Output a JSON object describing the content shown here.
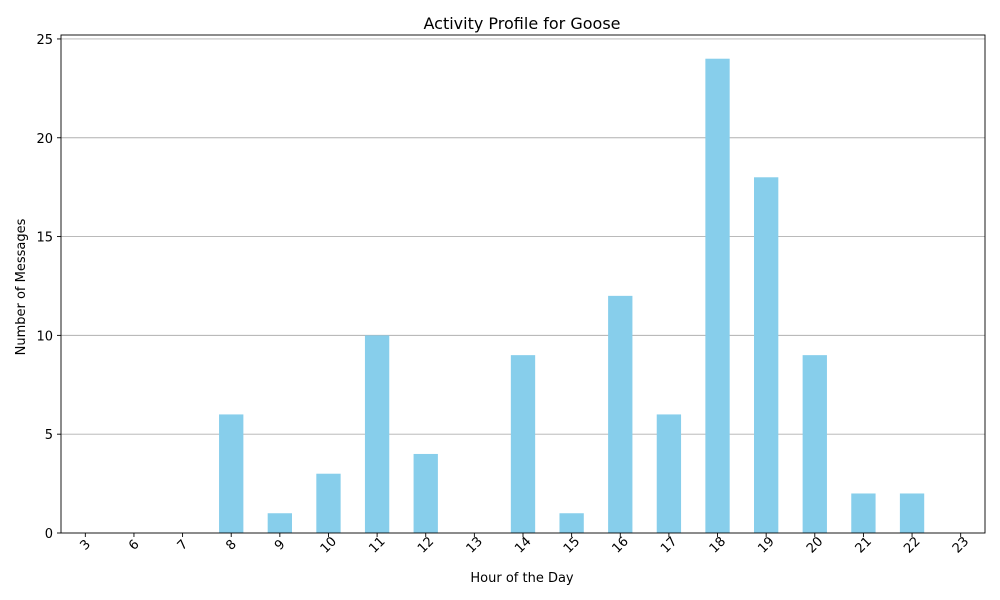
{
  "chart_data": {
    "type": "bar",
    "title": "Activity Profile for Goose",
    "xlabel": "Hour of the Day",
    "ylabel": "Number of Messages",
    "categories": [
      "3",
      "6",
      "7",
      "8",
      "9",
      "10",
      "11",
      "12",
      "13",
      "14",
      "15",
      "16",
      "17",
      "18",
      "19",
      "20",
      "21",
      "22",
      "23"
    ],
    "values": [
      0,
      0,
      0,
      6,
      1,
      3,
      10,
      4,
      0,
      9,
      1,
      12,
      6,
      24,
      18,
      9,
      2,
      2,
      0
    ],
    "ylim": [
      0,
      25.2
    ],
    "yticks": [
      0,
      5,
      10,
      15,
      20,
      25
    ],
    "grid": "y-axis only",
    "legend": "none",
    "bar_color": "#87CEEB",
    "x_tick_rotation": 45
  }
}
